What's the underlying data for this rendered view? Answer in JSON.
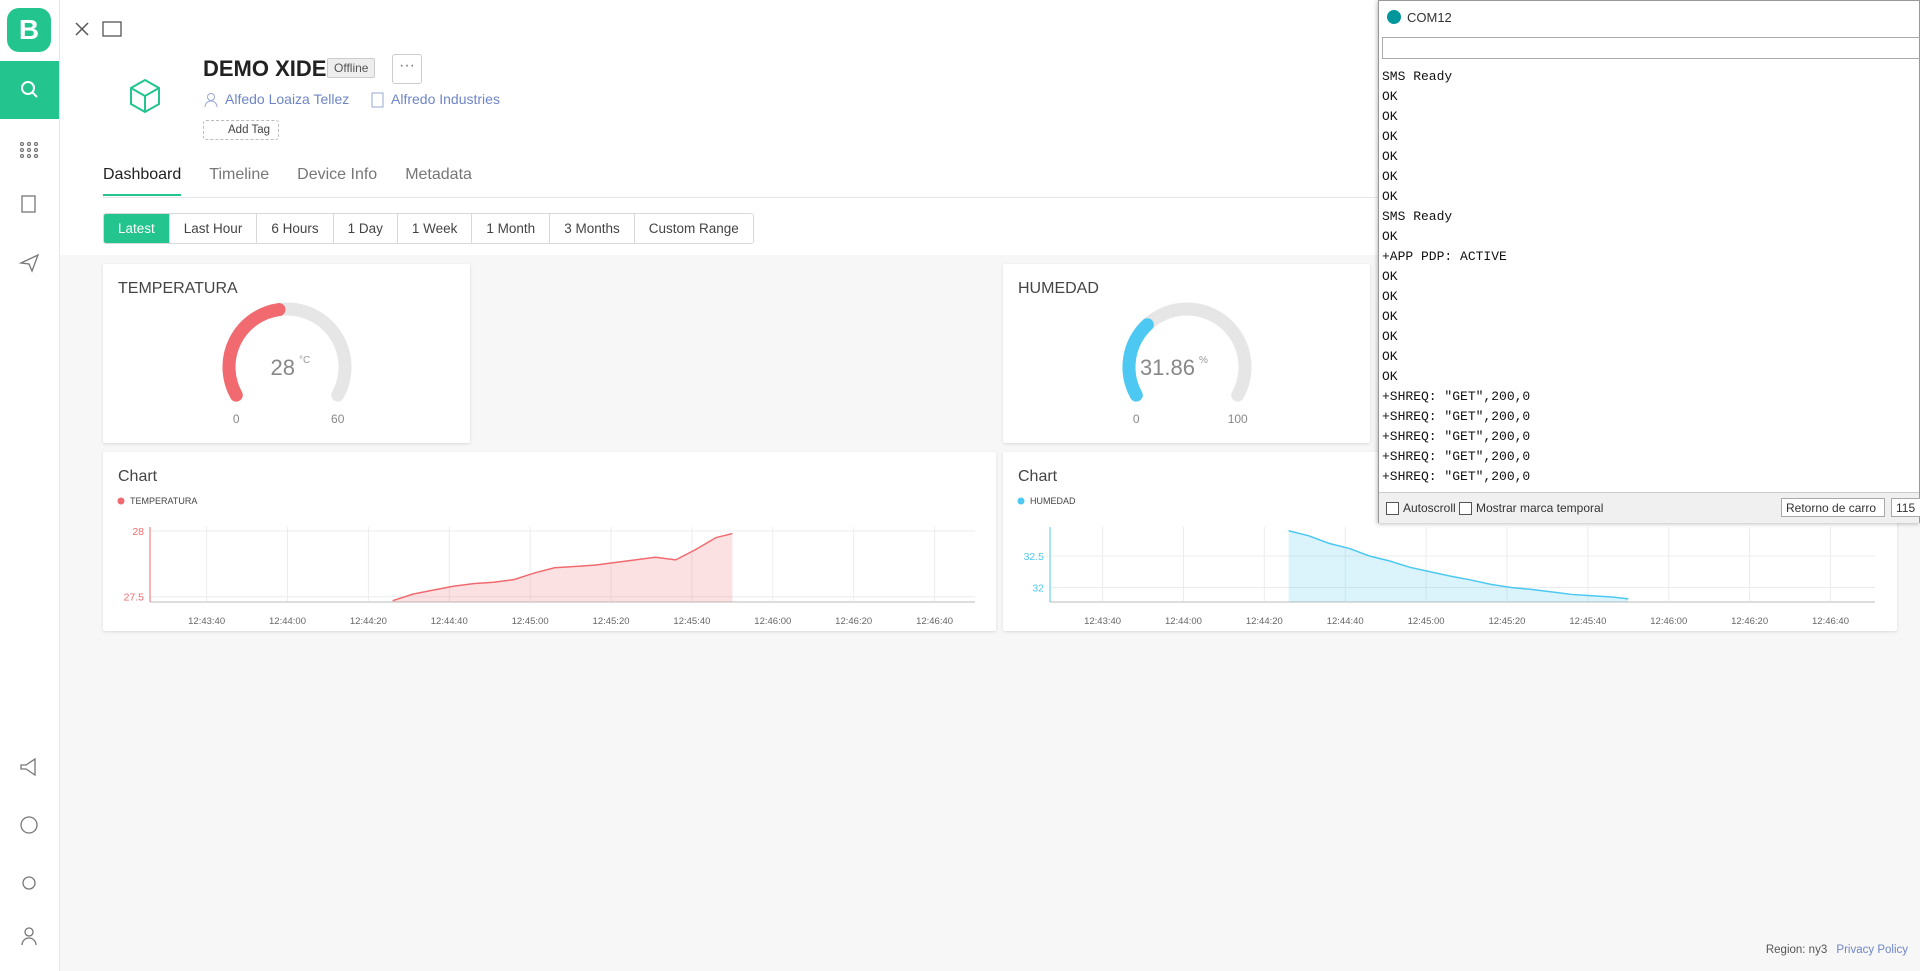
{
  "sidebar": {
    "logo": "B"
  },
  "header": {
    "device": "DEMO XIDE",
    "status": "Offline",
    "owner": "Alfedo Loaiza Tellez",
    "org": "Alfredo Industries",
    "add_tag": "Add Tag"
  },
  "tabs": [
    "Dashboard",
    "Timeline",
    "Device Info",
    "Metadata"
  ],
  "time_ranges": [
    "Latest",
    "Last Hour",
    "6 Hours",
    "1 Day",
    "1 Week",
    "1 Month",
    "3 Months",
    "Custom Range"
  ],
  "gauges": [
    {
      "title": "TEMPERATURA",
      "value": 28,
      "unit": "°C",
      "min": 0,
      "max": 60,
      "color": "#f06a6f"
    },
    {
      "title": "HUMEDAD",
      "value": 31.86,
      "unit": "%",
      "min": 0,
      "max": 100,
      "color": "#4cc8f2"
    }
  ],
  "charts": [
    {
      "type": "line",
      "title": "Chart",
      "x": [
        "12:44:26",
        "12:44:31",
        "12:44:36",
        "12:44:41",
        "12:44:46",
        "12:44:51",
        "12:44:56",
        "12:45:01",
        "12:45:06",
        "12:45:11",
        "12:45:16",
        "12:45:21",
        "12:45:26",
        "12:45:31",
        "12:45:36",
        "12:45:41",
        "12:45:46",
        "12:45:50"
      ],
      "series": [
        {
          "name": "TEMPERATURA",
          "color": "#f06a6f",
          "values": [
            27.47,
            27.52,
            27.55,
            27.58,
            27.6,
            27.61,
            27.63,
            27.68,
            27.72,
            27.73,
            27.74,
            27.76,
            27.78,
            27.8,
            27.78,
            27.86,
            27.95,
            27.98
          ]
        }
      ],
      "xlim": [
        "12:43:26",
        "12:46:50"
      ],
      "xticks": [
        "12:43:40",
        "12:44:00",
        "12:44:20",
        "12:44:40",
        "12:45:00",
        "12:45:20",
        "12:45:40",
        "12:46:00",
        "12:46:20",
        "12:46:40"
      ],
      "ylim": [
        27.46,
        28.03
      ],
      "yticks": [
        28,
        27.5
      ]
    },
    {
      "type": "line",
      "title": "Chart",
      "x": [
        "12:44:26",
        "12:44:31",
        "12:44:36",
        "12:44:41",
        "12:44:46",
        "12:44:51",
        "12:44:56",
        "12:45:01",
        "12:45:06",
        "12:45:11",
        "12:45:16",
        "12:45:21",
        "12:45:26",
        "12:45:31",
        "12:45:36",
        "12:45:41",
        "12:45:46",
        "12:45:50"
      ],
      "series": [
        {
          "name": "HUMEDAD",
          "color": "#4cc8f2",
          "values": [
            32.9,
            32.82,
            32.7,
            32.62,
            32.5,
            32.42,
            32.32,
            32.25,
            32.18,
            32.12,
            32.05,
            32.0,
            31.97,
            31.93,
            31.89,
            31.87,
            31.85,
            31.82
          ]
        }
      ],
      "xlim": [
        "12:43:27",
        "12:46:51"
      ],
      "xticks": [
        "12:43:40",
        "12:44:00",
        "12:44:20",
        "12:44:40",
        "12:45:00",
        "12:45:20",
        "12:45:40",
        "12:46:00",
        "12:46:20",
        "12:46:40"
      ],
      "ylim": [
        31.77,
        32.96
      ],
      "yticks": [
        32.5,
        32
      ]
    }
  ],
  "serial_monitor": {
    "title": "COM12",
    "lines": [
      "SMS Ready",
      "OK",
      "OK",
      "OK",
      "OK",
      "OK",
      "OK",
      "SMS Ready",
      "OK",
      "+APP PDP: ACTIVE",
      "OK",
      "OK",
      "OK",
      "OK",
      "OK",
      "OK",
      "+SHREQ: \"GET\",200,0",
      "+SHREQ: \"GET\",200,0",
      "+SHREQ: \"GET\",200,0",
      "+SHREQ: \"GET\",200,0",
      "+SHREQ: \"GET\",200,0"
    ],
    "autoscroll": "Autoscroll",
    "timestamp": "Mostrar marca temporal",
    "line_ending": "Retorno de carro",
    "baud": "115"
  },
  "footer": {
    "region": "Region: ny3",
    "privacy": "Privacy Policy"
  }
}
